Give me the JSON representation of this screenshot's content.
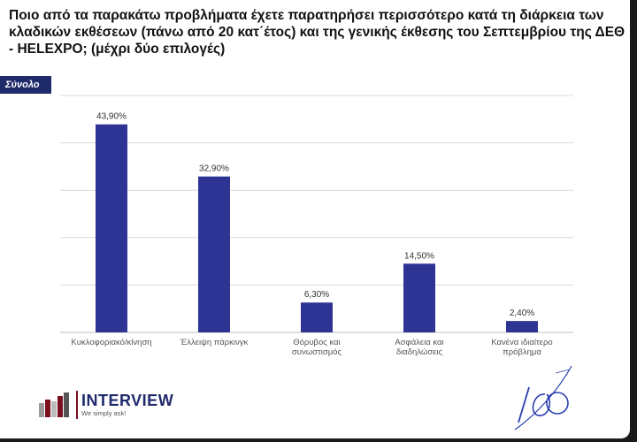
{
  "title": "Ποιο από τα παρακάτω προβλήματα έχετε παρατηρήσει περισσότερο κατά τη διάρκεια των κλαδικών εκθέσεων (πάνω από 20 κατ΄έτος) και της γενικής έκθεσης του Σεπτεμβρίου της ΔΕΘ - HELEXPO; (μέχρι δύο επιλογές)",
  "tag": "Σύνολο",
  "colors": {
    "bar": "#2d3494",
    "tag": "#1f2a6b",
    "brand": "#1f2a6b",
    "brand_red": "#7a1020"
  },
  "chart_data": {
    "type": "bar",
    "categories": [
      [
        "Κυκλοφοριακό/κίνηση"
      ],
      [
        "Έλλειψη πάρκινγκ"
      ],
      [
        "Θόρυβος και",
        "συνωστισμός"
      ],
      [
        "Ασφάλεια και",
        "διαδηλώσεις"
      ],
      [
        "Κανένα ιδιαίτερο",
        "πρόβλημα"
      ]
    ],
    "values": [
      43.9,
      32.9,
      6.3,
      14.5,
      2.4
    ],
    "value_labels": [
      "43,90%",
      "32,90%",
      "6,30%",
      "14,50%",
      "2,40%"
    ],
    "ylim": [
      0,
      50
    ],
    "gridlines": true,
    "legend": "none"
  },
  "logo": {
    "name": "INTERVIEW",
    "slogan": "We simply ask!"
  },
  "signature_text": "ΙΑΟ"
}
